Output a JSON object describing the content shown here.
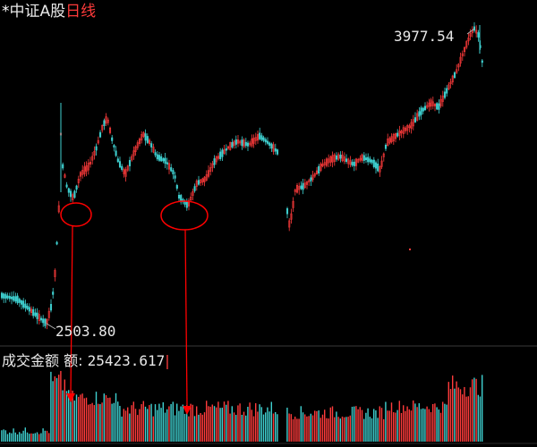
{
  "title": {
    "mark": "*",
    "index_name": "中证A股",
    "period": "日线"
  },
  "price_chart": {
    "high_label": "3977.54",
    "low_label": "2503.80"
  },
  "volume_panel": {
    "label": "成交金额 额:",
    "value": "25423.617"
  },
  "colors": {
    "up": "#ff3b3b",
    "down": "#3fd0d0",
    "background": "#000000",
    "annotation": "#ff0000"
  },
  "annotations": {
    "circles": 2,
    "arrows": 2
  }
}
